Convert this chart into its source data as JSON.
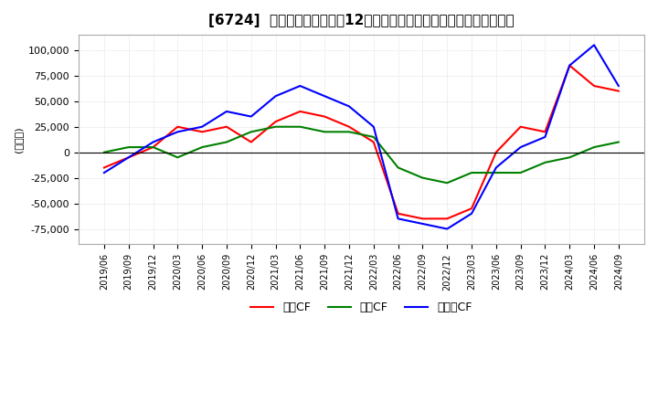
{
  "title": "[6724]  キャッシュフローの12か月移動合計の対前年同期増減額の推移",
  "ylabel": "(百万円)",
  "ylim": [
    -90000,
    115000
  ],
  "yticks": [
    -75000,
    -50000,
    -25000,
    0,
    25000,
    50000,
    75000,
    100000
  ],
  "legend": [
    "営業CF",
    "投資CF",
    "フリーCF"
  ],
  "legend_colors": [
    "#ff0000",
    "#008000",
    "#0000ff"
  ],
  "dates": [
    "2019/06",
    "2019/09",
    "2019/12",
    "2020/03",
    "2020/06",
    "2020/09",
    "2020/12",
    "2021/03",
    "2021/06",
    "2021/09",
    "2021/12",
    "2022/03",
    "2022/06",
    "2022/09",
    "2022/12",
    "2023/03",
    "2023/06",
    "2023/09",
    "2023/12",
    "2024/03",
    "2024/06",
    "2024/09"
  ],
  "営業CF": [
    -15000,
    -5000,
    5000,
    25000,
    20000,
    25000,
    10000,
    30000,
    40000,
    35000,
    25000,
    10000,
    -60000,
    -65000,
    -65000,
    -55000,
    0,
    25000,
    20000,
    85000,
    65000,
    60000
  ],
  "投資CF": [
    0,
    5000,
    5000,
    -5000,
    5000,
    10000,
    20000,
    25000,
    25000,
    20000,
    20000,
    15000,
    -15000,
    -25000,
    -30000,
    -20000,
    -20000,
    -20000,
    -10000,
    -5000,
    5000,
    10000
  ],
  "フリーCF": [
    -20000,
    -5000,
    10000,
    20000,
    25000,
    40000,
    35000,
    55000,
    65000,
    55000,
    45000,
    25000,
    -65000,
    -70000,
    -75000,
    -60000,
    -15000,
    5000,
    15000,
    85000,
    105000,
    65000
  ],
  "background_color": "#ffffff",
  "grid_color": "#cccccc"
}
